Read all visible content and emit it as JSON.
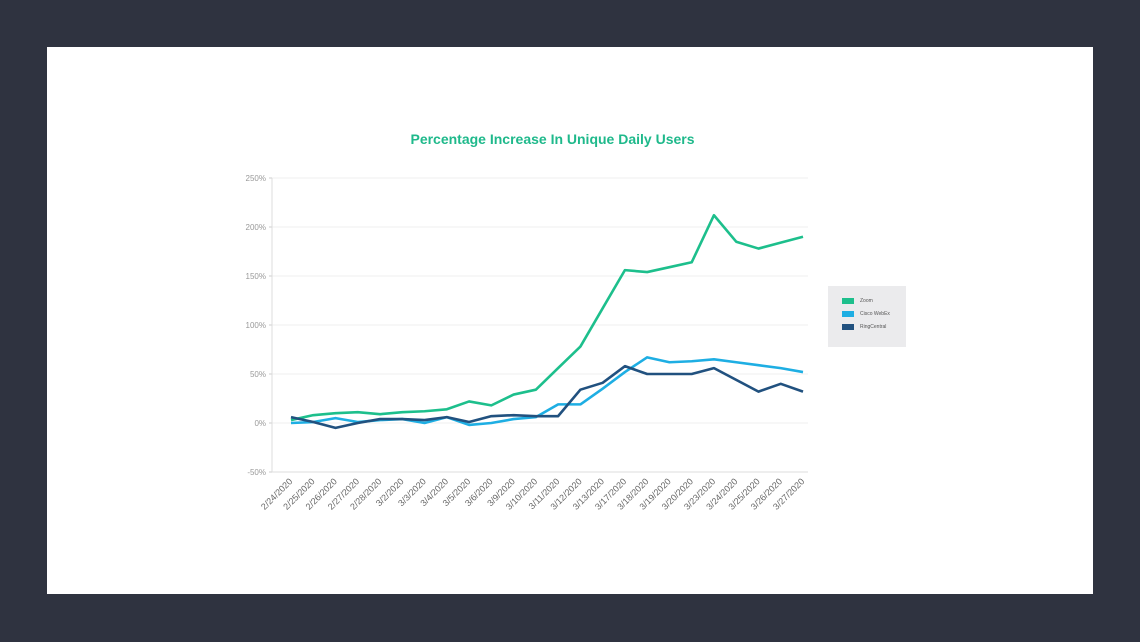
{
  "chart_data": {
    "type": "line",
    "title": "Percentage Increase In Unique Daily Users",
    "xlabel": "",
    "ylabel": "",
    "ylim": [
      -50,
      250
    ],
    "yticks": [
      "-50%",
      "0%",
      "50%",
      "100%",
      "150%",
      "200%",
      "250%"
    ],
    "ytick_values": [
      -50,
      0,
      50,
      100,
      150,
      200,
      250
    ],
    "grid": true,
    "legend_position": "right",
    "categories": [
      "2/24/2020",
      "2/25/2020",
      "2/26/2020",
      "2/27/2020",
      "2/28/2020",
      "3/2/2020",
      "3/3/2020",
      "3/4/2020",
      "3/5/2020",
      "3/6/2020",
      "3/9/2020",
      "3/10/2020",
      "3/11/2020",
      "3/12/2020",
      "3/13/2020",
      "3/17/2020",
      "3/18/2020",
      "3/19/2020",
      "3/20/2020",
      "3/23/2020",
      "3/24/2020",
      "3/25/2020",
      "3/26/2020",
      "3/27/2020"
    ],
    "series": [
      {
        "name": "Zoom",
        "color": "#1dbf8c",
        "values": [
          3,
          8,
          10,
          11,
          9,
          11,
          12,
          14,
          22,
          18,
          29,
          34,
          56,
          78,
          117,
          156,
          154,
          159,
          164,
          212,
          185,
          178,
          184,
          190
        ]
      },
      {
        "name": "Cisco WebEx",
        "color": "#1eaee3",
        "values": [
          0,
          1,
          5,
          1,
          3,
          4,
          0,
          6,
          -2,
          0,
          4,
          6,
          19,
          19,
          35,
          52,
          67,
          62,
          63,
          65,
          62,
          59,
          56,
          52
        ]
      },
      {
        "name": "RingCentral",
        "color": "#21517f",
        "values": [
          6,
          1,
          -5,
          0,
          4,
          4,
          3,
          6,
          1,
          7,
          8,
          7,
          7,
          34,
          41,
          58,
          50,
          50,
          50,
          56,
          44,
          32,
          40,
          32
        ]
      }
    ]
  }
}
